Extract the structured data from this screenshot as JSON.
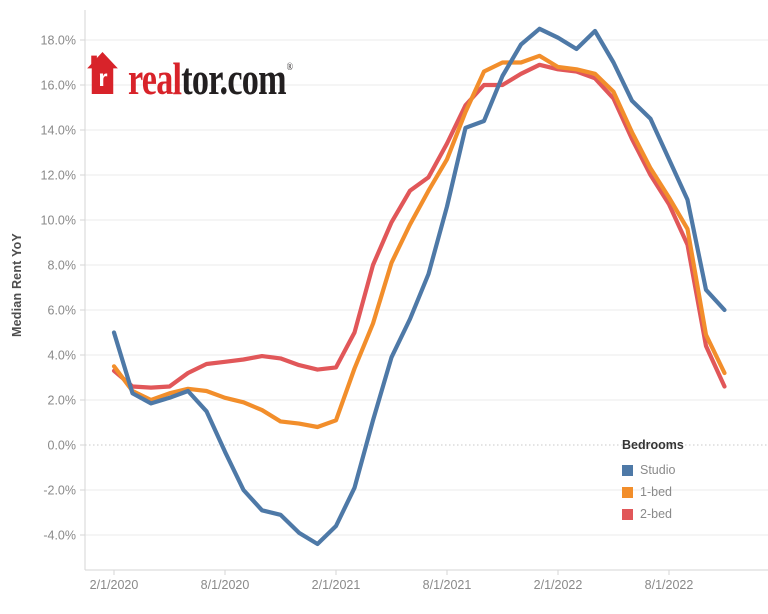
{
  "logo": {
    "word_red": "real",
    "word_dark": "tor.com",
    "registered": "®",
    "house_letter": "r",
    "red": "#d8232a",
    "dark": "#221f20"
  },
  "legend": {
    "title": "Bedrooms",
    "items": [
      {
        "label": "Studio",
        "color": "#4e79a7"
      },
      {
        "label": "1-bed",
        "color": "#f28e2b"
      },
      {
        "label": "2-bed",
        "color": "#e15759"
      }
    ]
  },
  "colors": {
    "grid": "#ebebeb",
    "zero_line": "#c8c8c8",
    "axis_line": "#d6d6d6",
    "tick_text": "#8a8a8a",
    "axis_title": "#4e4e4e"
  },
  "chart_data": {
    "type": "line",
    "title": "",
    "xlabel": "",
    "ylabel": "Median Rent YoY",
    "grid": "horizontal",
    "zero_line": "dotted",
    "legend_position": "right-inside",
    "ylim": [
      -5.5,
      19.3
    ],
    "x": [
      "2/1/2020",
      "3/1/2020",
      "4/1/2020",
      "5/1/2020",
      "6/1/2020",
      "7/1/2020",
      "8/1/2020",
      "9/1/2020",
      "10/1/2020",
      "11/1/2020",
      "12/1/2020",
      "1/1/2021",
      "2/1/2021",
      "3/1/2021",
      "4/1/2021",
      "5/1/2021",
      "6/1/2021",
      "7/1/2021",
      "8/1/2021",
      "9/1/2021",
      "10/1/2021",
      "11/1/2021",
      "12/1/2021",
      "1/1/2022",
      "2/1/2022",
      "3/1/2022",
      "4/1/2022",
      "5/1/2022",
      "6/1/2022",
      "7/1/2022",
      "8/1/2022",
      "9/1/2022",
      "10/1/2022",
      "11/1/2022"
    ],
    "series": [
      {
        "name": "Studio",
        "color": "#4e79a7",
        "values": [
          5.0,
          2.3,
          1.85,
          2.1,
          2.4,
          1.5,
          -0.3,
          -2.0,
          -2.9,
          -3.1,
          -3.9,
          -4.4,
          -3.6,
          -1.9,
          1.1,
          3.9,
          5.6,
          7.6,
          10.6,
          14.1,
          14.4,
          16.4,
          17.8,
          18.5,
          18.1,
          17.6,
          18.4,
          17.0,
          15.3,
          14.5,
          12.7,
          10.9,
          6.9,
          6.0
        ]
      },
      {
        "name": "1-bed",
        "color": "#f28e2b",
        "values": [
          3.5,
          2.4,
          2.0,
          2.3,
          2.5,
          2.4,
          2.1,
          1.9,
          1.55,
          1.05,
          0.95,
          0.8,
          1.1,
          3.4,
          5.4,
          8.1,
          9.8,
          11.3,
          12.7,
          14.8,
          16.6,
          17.0,
          17.0,
          17.3,
          16.8,
          16.7,
          16.5,
          15.7,
          13.9,
          12.3,
          11.0,
          9.6,
          4.9,
          3.2
        ]
      },
      {
        "name": "2-bed",
        "color": "#e15759",
        "values": [
          3.3,
          2.6,
          2.55,
          2.6,
          3.2,
          3.6,
          3.7,
          3.8,
          3.95,
          3.85,
          3.55,
          3.35,
          3.45,
          5.0,
          8.0,
          9.9,
          11.3,
          11.9,
          13.4,
          15.1,
          16.0,
          16.0,
          16.5,
          16.9,
          16.7,
          16.6,
          16.3,
          15.4,
          13.6,
          12.0,
          10.7,
          8.9,
          4.4,
          2.6
        ]
      }
    ],
    "x_tick_indices": [
      0,
      6,
      12,
      18,
      24,
      30
    ],
    "x_tick_labels": [
      "2/1/2020",
      "8/1/2020",
      "2/1/2021",
      "8/1/2021",
      "2/1/2022",
      "8/1/2022"
    ],
    "y_tick_values": [
      18,
      16,
      14,
      12,
      10,
      8,
      6,
      4,
      2,
      0,
      -2,
      -4
    ],
    "y_tick_labels": [
      "18.0%",
      "16.0%",
      "14.0%",
      "12.0%",
      "10.0%",
      "8.0%",
      "6.0%",
      "4.0%",
      "2.0%",
      "0.0%",
      "-2.0%",
      "-4.0%"
    ]
  }
}
